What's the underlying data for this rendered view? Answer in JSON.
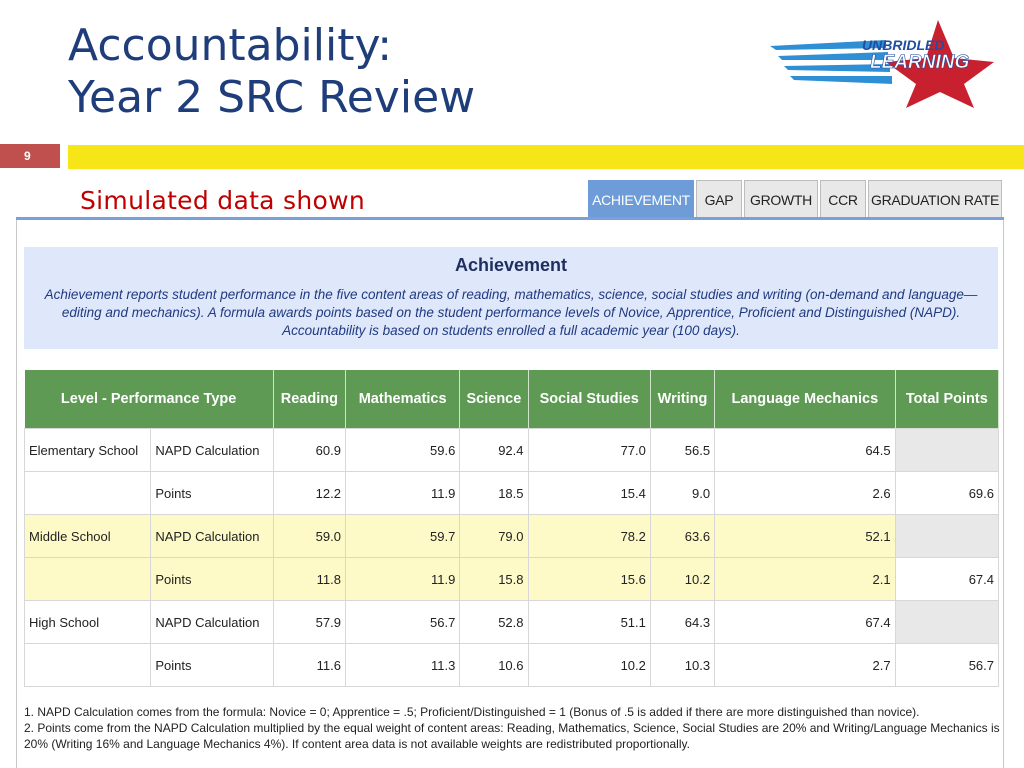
{
  "slide": {
    "title_line1": "Accountability:",
    "title_line2": "Year 2 SRC Review",
    "number": "9",
    "subtitle": "Simulated data shown"
  },
  "logo": {
    "line1": "UNBRIDLED",
    "line2": "LEARNING"
  },
  "tabs": [
    {
      "label": "ACHIEVEMENT",
      "active": true
    },
    {
      "label": "GAP",
      "active": false
    },
    {
      "label": "GROWTH",
      "active": false
    },
    {
      "label": "CCR",
      "active": false
    },
    {
      "label": "GRADUATION RATE",
      "active": false
    }
  ],
  "achievement": {
    "title": "Achievement",
    "description": "Achievement reports student performance in the five content areas of reading, mathematics, science, social studies and writing (on-demand and language—editing and mechanics). A formula awards points based on the student performance levels of Novice, Apprentice, Proficient and Distinguished (NAPD). Accountability is based on students enrolled a full academic year (100 days)."
  },
  "table": {
    "headers": [
      "Level - Performance Type",
      "Reading",
      "Mathematics",
      "Science",
      "Social Studies",
      "Writing",
      "Language Mechanics",
      "Total Points"
    ],
    "groups": [
      {
        "level": "Elementary School",
        "rows": [
          {
            "type": "NAPD Calculation",
            "values": [
              "60.9",
              "59.6",
              "92.4",
              "77.0",
              "56.5",
              "64.5"
            ],
            "total": ""
          },
          {
            "type": "Points",
            "values": [
              "12.2",
              "11.9",
              "18.5",
              "15.4",
              "9.0",
              "2.6"
            ],
            "total": "69.6"
          }
        ]
      },
      {
        "level": "Middle School",
        "rows": [
          {
            "type": "NAPD Calculation",
            "values": [
              "59.0",
              "59.7",
              "79.0",
              "78.2",
              "63.6",
              "52.1"
            ],
            "total": ""
          },
          {
            "type": "Points",
            "values": [
              "11.8",
              "11.9",
              "15.8",
              "15.6",
              "10.2",
              "2.1"
            ],
            "total": "67.4"
          }
        ]
      },
      {
        "level": "High School",
        "rows": [
          {
            "type": "NAPD Calculation",
            "values": [
              "57.9",
              "56.7",
              "52.8",
              "51.1",
              "64.3",
              "67.4"
            ],
            "total": ""
          },
          {
            "type": "Points",
            "values": [
              "11.6",
              "11.3",
              "10.6",
              "10.2",
              "10.3",
              "2.7"
            ],
            "total": "56.7"
          }
        ]
      }
    ]
  },
  "notes": [
    "1. NAPD Calculation comes from the formula: Novice = 0; Apprentice = .5; Proficient/Distinguished = 1 (Bonus of .5 is added if there are more distinguished than novice).",
    "2. Points come from the NAPD Calculation multiplied by the equal weight of content areas: Reading, Mathematics, Science, Social Studies are 20% and Writing/Language Mechanics is 20% (Writing 16% and Language Mechanics 4%). If content area data is not available weights are redistributed proportionally."
  ],
  "colors": {
    "title": "#1f3d7a",
    "accent_red": "#c00000",
    "header_green": "#5f9a55",
    "highlight_yellow": "#fdfac8",
    "bar_yellow": "#f7e617",
    "tab_active": "#6e9cd8"
  }
}
